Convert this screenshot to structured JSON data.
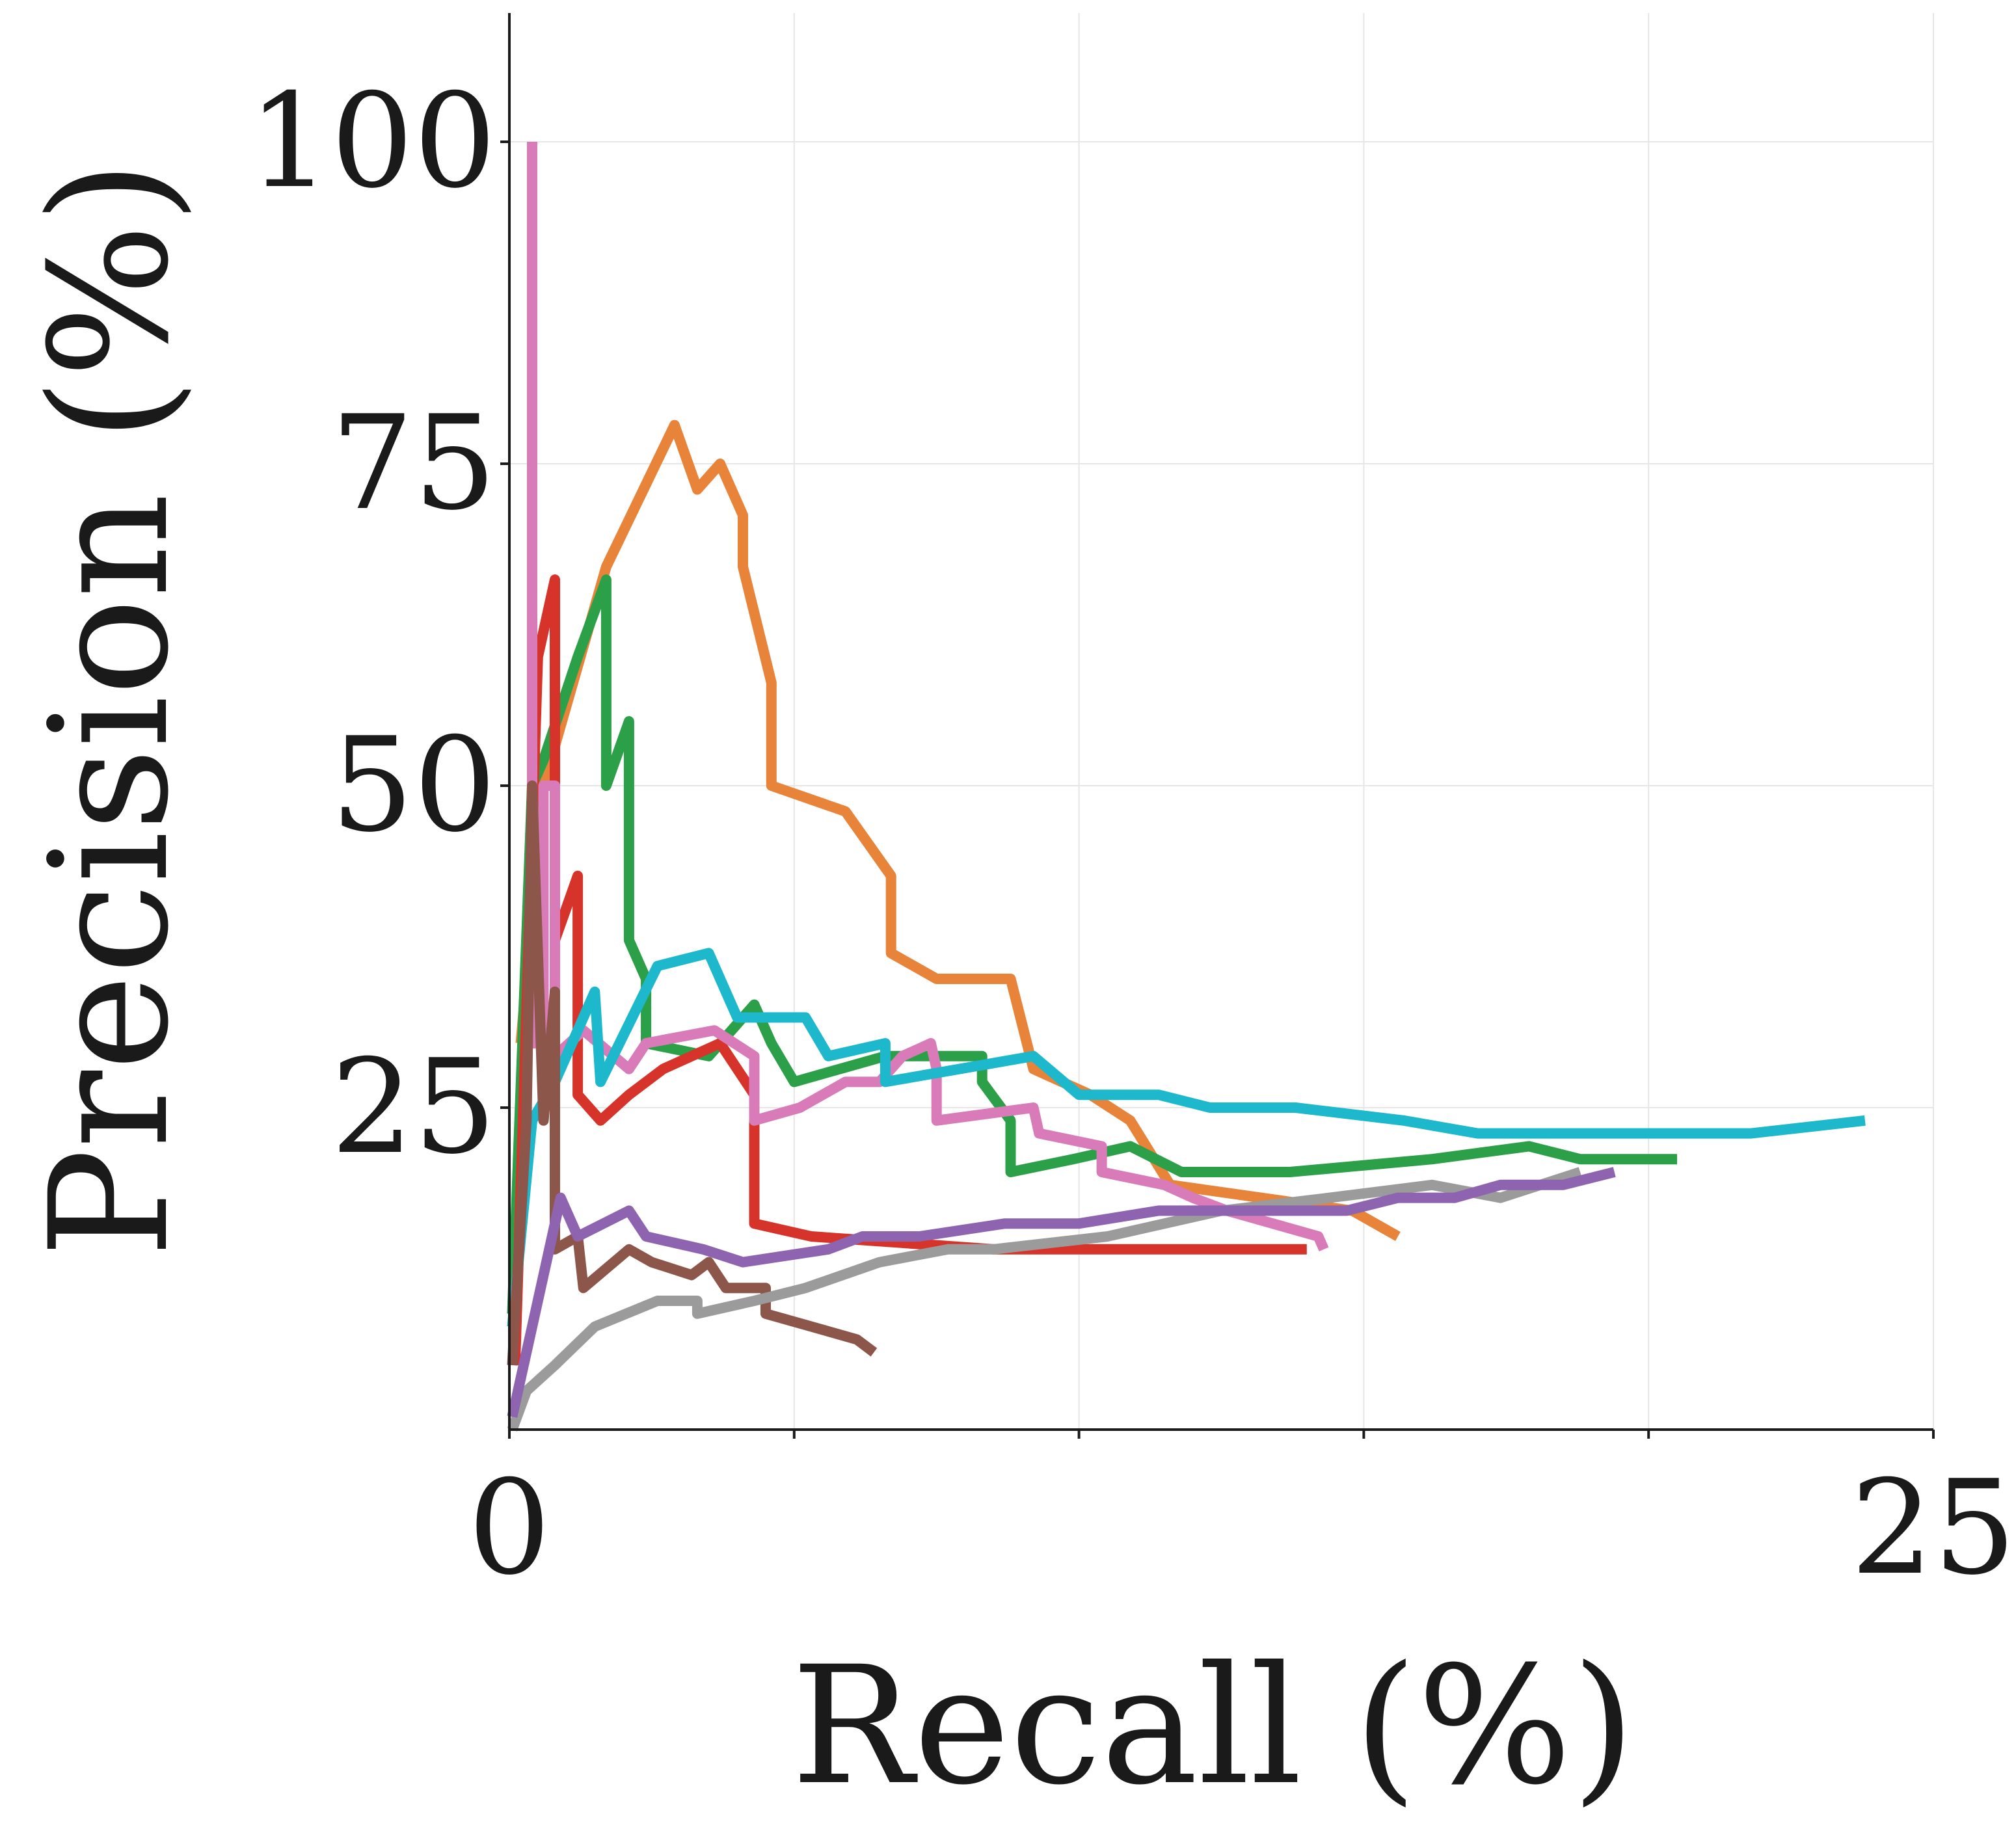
{
  "chart_data": {
    "type": "line",
    "title": "",
    "xlabel": "Recall (%)",
    "ylabel": "Precision (%)",
    "xlim": [
      0,
      25
    ],
    "ylim": [
      0,
      110
    ],
    "xticks": [
      0,
      5,
      10,
      15,
      20,
      25
    ],
    "xtick_labels": [
      "0",
      "",
      "",
      "",
      "",
      "25"
    ],
    "yticks": [
      25,
      50,
      75,
      100
    ],
    "ytick_labels": [
      "25",
      "50",
      "75",
      "100"
    ],
    "grid": true,
    "legend": "none",
    "series": [
      {
        "color": "#e8833a",
        "points": [
          [
            0.2,
            30
          ],
          [
            0.6,
            50
          ],
          [
            1.7,
            67
          ],
          [
            2.9,
            78
          ],
          [
            3.3,
            73
          ],
          [
            3.7,
            75
          ],
          [
            4.1,
            71
          ],
          [
            4.1,
            67
          ],
          [
            4.6,
            58
          ],
          [
            4.6,
            50
          ],
          [
            5.9,
            48
          ],
          [
            6.7,
            43
          ],
          [
            6.7,
            37
          ],
          [
            7.5,
            35
          ],
          [
            8.8,
            35
          ],
          [
            9.2,
            28
          ],
          [
            10.2,
            26
          ],
          [
            10.9,
            24
          ],
          [
            11.6,
            19
          ],
          [
            14.8,
            17
          ],
          [
            15.6,
            15
          ]
        ]
      },
      {
        "color": "#2ca048",
        "points": [
          [
            0.05,
            9
          ],
          [
            0.4,
            50
          ],
          [
            0.6,
            52
          ],
          [
            1.2,
            60
          ],
          [
            1.7,
            66
          ],
          [
            1.7,
            50
          ],
          [
            2.1,
            55
          ],
          [
            2.1,
            38
          ],
          [
            2.4,
            35
          ],
          [
            2.4,
            30
          ],
          [
            3.5,
            29
          ],
          [
            4.3,
            33
          ],
          [
            4.6,
            30
          ],
          [
            5.0,
            27
          ],
          [
            6.6,
            29
          ],
          [
            8.3,
            29
          ],
          [
            8.3,
            27
          ],
          [
            8.8,
            24
          ],
          [
            8.8,
            20
          ],
          [
            9.9,
            21
          ],
          [
            10.9,
            22
          ],
          [
            11.8,
            20
          ],
          [
            13.7,
            20
          ],
          [
            16.2,
            21
          ],
          [
            17.9,
            22
          ],
          [
            18.8,
            21
          ],
          [
            20.5,
            21
          ]
        ]
      },
      {
        "color": "#d6342b",
        "points": [
          [
            0.1,
            5
          ],
          [
            0.5,
            60
          ],
          [
            0.8,
            66
          ],
          [
            0.8,
            38
          ],
          [
            1.2,
            43
          ],
          [
            1.2,
            26
          ],
          [
            1.6,
            24
          ],
          [
            2.1,
            26
          ],
          [
            2.7,
            28
          ],
          [
            3.7,
            30
          ],
          [
            4.3,
            26
          ],
          [
            4.3,
            16
          ],
          [
            5.3,
            15
          ],
          [
            8.5,
            14
          ],
          [
            11.8,
            14
          ],
          [
            14.0,
            14
          ]
        ]
      },
      {
        "color": "#d97bb8",
        "points": [
          [
            0.4,
            100
          ],
          [
            0.4,
            30
          ],
          [
            0.6,
            30
          ],
          [
            0.6,
            50
          ],
          [
            0.8,
            50
          ],
          [
            0.8,
            29
          ],
          [
            1.3,
            31
          ],
          [
            2.1,
            28
          ],
          [
            2.4,
            30
          ],
          [
            3.6,
            31
          ],
          [
            4.3,
            29
          ],
          [
            4.3,
            24
          ],
          [
            5.1,
            25
          ],
          [
            5.9,
            27
          ],
          [
            6.5,
            27
          ],
          [
            6.9,
            29
          ],
          [
            7.4,
            30
          ],
          [
            7.5,
            28
          ],
          [
            7.5,
            24
          ],
          [
            9.2,
            25
          ],
          [
            9.3,
            23
          ],
          [
            10.4,
            22
          ],
          [
            10.4,
            20
          ],
          [
            11.5,
            19
          ],
          [
            12.0,
            18
          ],
          [
            12.6,
            17
          ],
          [
            14.2,
            15
          ],
          [
            14.3,
            14
          ]
        ]
      },
      {
        "color": "#1db8cc",
        "points": [
          [
            0.05,
            8
          ],
          [
            0.4,
            24
          ],
          [
            0.8,
            27
          ],
          [
            1.5,
            34
          ],
          [
            1.6,
            27
          ],
          [
            2.6,
            36
          ],
          [
            3.5,
            37
          ],
          [
            4.0,
            32
          ],
          [
            4.6,
            32
          ],
          [
            5.2,
            32
          ],
          [
            5.6,
            29
          ],
          [
            6.6,
            30
          ],
          [
            6.6,
            27
          ],
          [
            9.2,
            29
          ],
          [
            10.0,
            26
          ],
          [
            11.4,
            26
          ],
          [
            12.3,
            25
          ],
          [
            13.8,
            25
          ],
          [
            15.7,
            24
          ],
          [
            17.0,
            23
          ],
          [
            18.8,
            23
          ],
          [
            20.2,
            23
          ],
          [
            21.8,
            23
          ],
          [
            23.8,
            24
          ]
        ]
      },
      {
        "color": "#8c564b",
        "points": [
          [
            0.05,
            5
          ],
          [
            0.3,
            24
          ],
          [
            0.4,
            50
          ],
          [
            0.6,
            24
          ],
          [
            0.8,
            34
          ],
          [
            0.8,
            14
          ],
          [
            1.2,
            15
          ],
          [
            1.3,
            11
          ],
          [
            2.1,
            14
          ],
          [
            2.5,
            13
          ],
          [
            3.2,
            12
          ],
          [
            3.5,
            13
          ],
          [
            3.8,
            11
          ],
          [
            4.5,
            11
          ],
          [
            4.5,
            9
          ],
          [
            5.3,
            8
          ],
          [
            6.1,
            7
          ],
          [
            6.4,
            6
          ]
        ]
      },
      {
        "color": "#9b9b9b",
        "points": [
          [
            0.05,
            0
          ],
          [
            0.3,
            3
          ],
          [
            0.8,
            5
          ],
          [
            1.5,
            8
          ],
          [
            2.6,
            10
          ],
          [
            3.3,
            10
          ],
          [
            3.3,
            9
          ],
          [
            4.3,
            10
          ],
          [
            5.2,
            11
          ],
          [
            6.5,
            13
          ],
          [
            7.7,
            14
          ],
          [
            8.5,
            14
          ],
          [
            10.5,
            15
          ],
          [
            12.5,
            17
          ],
          [
            14.4,
            18
          ],
          [
            16.2,
            19
          ],
          [
            17.4,
            18
          ],
          [
            18.8,
            20
          ]
        ]
      },
      {
        "color": "#8e63b0",
        "points": [
          [
            0.05,
            1
          ],
          [
            0.9,
            18
          ],
          [
            1.2,
            15
          ],
          [
            2.1,
            17
          ],
          [
            2.4,
            15
          ],
          [
            3.4,
            14
          ],
          [
            4.1,
            13
          ],
          [
            5.6,
            14
          ],
          [
            6.2,
            15
          ],
          [
            7.2,
            15
          ],
          [
            8.7,
            16
          ],
          [
            10.0,
            16
          ],
          [
            11.4,
            17
          ],
          [
            13.0,
            17
          ],
          [
            14.7,
            17
          ],
          [
            15.6,
            18
          ],
          [
            16.6,
            18
          ],
          [
            17.4,
            19
          ],
          [
            18.5,
            19
          ],
          [
            19.4,
            20
          ]
        ]
      }
    ]
  }
}
